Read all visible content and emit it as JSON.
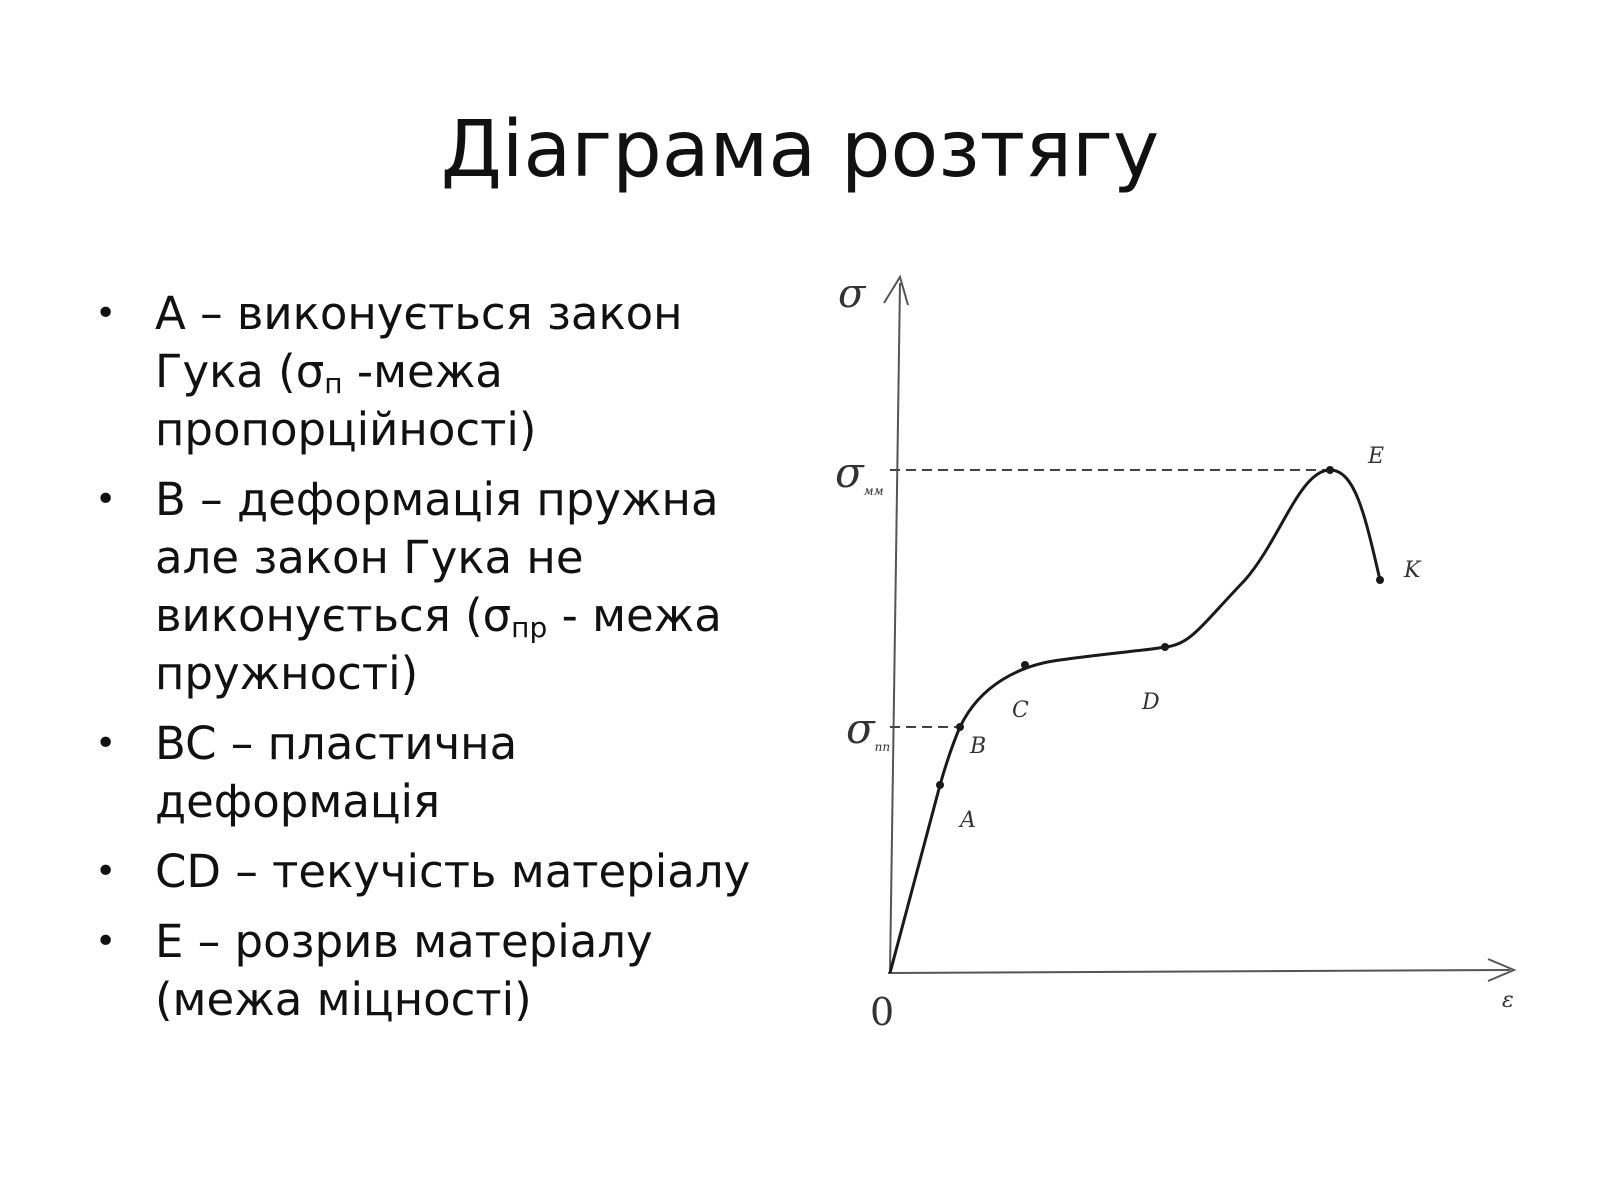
{
  "title": "Діаграма розтягу",
  "bullets": [
    {
      "lines": [
        "A – виконується закон",
        "Гука (",
        "σ",
        "п",
        " -межа",
        "пропорційності)"
      ]
    },
    {
      "lines": [
        "B – деформація пружна",
        "але закон Гука не",
        "виконується (",
        "σ",
        "пр",
        " - межа",
        "пружності)"
      ]
    },
    {
      "lines": [
        "BC – пластична",
        "деформація"
      ]
    },
    {
      "lines": [
        "CD – текучість матеріалу"
      ]
    },
    {
      "lines": [
        "E – розрив матеріалу",
        "(межа міцності)"
      ]
    }
  ],
  "diagram": {
    "y_axis_label": "σ",
    "x_axis_label": "ε",
    "origin_label": "0",
    "level_high_label": "σ",
    "level_high_sub": "мм",
    "level_low_label": "σ",
    "level_low_sub": "пп",
    "points": [
      {
        "label": "A"
      },
      {
        "label": "B"
      },
      {
        "label": "C"
      },
      {
        "label": "D"
      },
      {
        "label": "E"
      },
      {
        "label": "K"
      }
    ],
    "colors": {
      "curve": "#1a1a1a",
      "axis": "#555555",
      "dashed": "#444444"
    }
  }
}
